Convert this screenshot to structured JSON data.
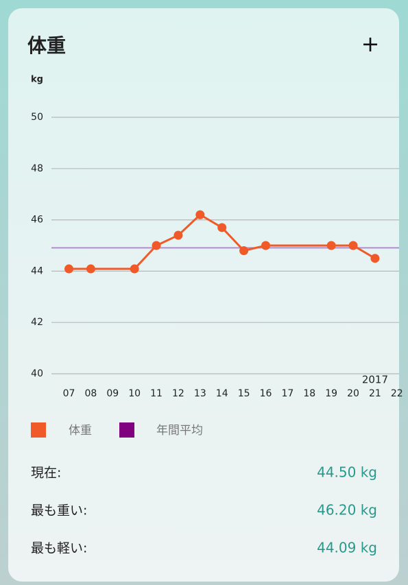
{
  "header": {
    "title": "体重",
    "add_button": "+"
  },
  "chart_data": {
    "type": "line",
    "y_unit_label": "kg",
    "x": [
      7,
      8,
      10,
      11,
      12,
      13,
      14,
      15,
      16,
      19,
      20,
      21
    ],
    "series": [
      {
        "name": "体重",
        "color": "#f05a28",
        "values": [
          44.09,
          44.09,
          44.09,
          45.0,
          45.4,
          46.2,
          45.7,
          44.8,
          45.0,
          45.0,
          45.0,
          44.5
        ]
      }
    ],
    "reference_line": {
      "name": "年間平均",
      "color": "#800080",
      "line_color": "#b58ad0",
      "value": 44.91
    },
    "xlim": [
      6.2,
      22.1
    ],
    "xticks": [
      {
        "value": 7,
        "label": "07"
      },
      {
        "value": 8,
        "label": "08"
      },
      {
        "value": 9,
        "label": "09"
      },
      10,
      11,
      12,
      13,
      14,
      15,
      16,
      17,
      18,
      19,
      20,
      21,
      22
    ],
    "ylim": [
      40,
      50
    ],
    "yticks": [
      40,
      42,
      44,
      46,
      48,
      50
    ],
    "grid": true,
    "annotation": {
      "text": "2017",
      "x": 21
    }
  },
  "stats": [
    {
      "label": "現在:",
      "value": "44.50 kg"
    },
    {
      "label": "最も重い:",
      "value": "46.20 kg"
    },
    {
      "label": "最も軽い:",
      "value": "44.09 kg"
    }
  ]
}
